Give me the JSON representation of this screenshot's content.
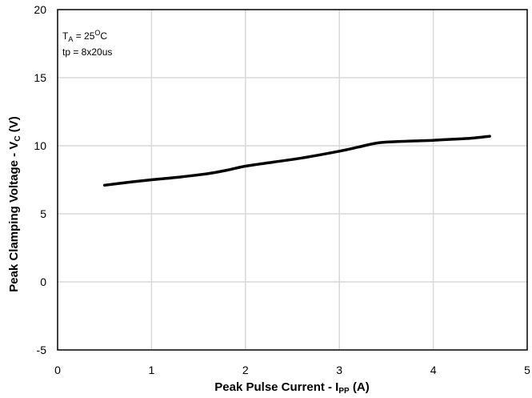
{
  "chart_data": {
    "type": "line",
    "title": "",
    "xlabel": {
      "main": "Peak Pulse Current - I",
      "sub": "PP",
      "tail": " (A)"
    },
    "ylabel": {
      "main": "Peak Clamping Voltage - V",
      "sub": "C",
      "tail": " (V)"
    },
    "xlim": [
      0,
      5
    ],
    "ylim": [
      -5,
      20
    ],
    "xticks": [
      "0",
      "1",
      "2",
      "3",
      "4",
      "5"
    ],
    "yticks": [
      "-5",
      "0",
      "5",
      "10",
      "15",
      "20"
    ],
    "grid": true,
    "annotations": {
      "line1": {
        "main": "T",
        "sub": "A",
        "tail": " = 25",
        "sup": "O",
        "end": "C"
      },
      "line2": "tp = 8x20us"
    },
    "series": [
      {
        "color": "#000000",
        "x": [
          0.5,
          0.8,
          1.0,
          1.3,
          1.6,
          1.8,
          2.0,
          2.3,
          2.6,
          3.0,
          3.2,
          3.4,
          3.6,
          3.8,
          4.0,
          4.2,
          4.4,
          4.6
        ],
        "y": [
          7.1,
          7.35,
          7.5,
          7.7,
          7.95,
          8.2,
          8.5,
          8.8,
          9.1,
          9.6,
          9.9,
          10.2,
          10.3,
          10.35,
          10.4,
          10.48,
          10.55,
          10.7
        ]
      }
    ]
  }
}
